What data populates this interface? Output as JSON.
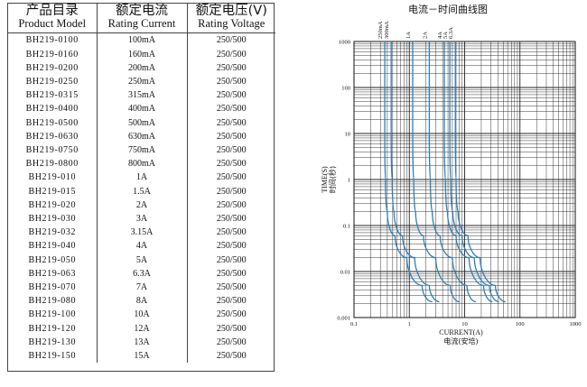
{
  "table": {
    "headers": [
      {
        "cn": "产品目录",
        "en": "Product Model"
      },
      {
        "cn": "额定电流",
        "en": "Rating Current"
      },
      {
        "cn": "额定电压(V)",
        "en": "Rating Voltage"
      }
    ],
    "rows": [
      [
        "BH219-0100",
        "100mA",
        "250/500"
      ],
      [
        "BH219-0160",
        "160mA",
        "250/500"
      ],
      [
        "BH219-0200",
        "200mA",
        "250/500"
      ],
      [
        "BH219-0250",
        "250mA",
        "250/500"
      ],
      [
        "BH219-0315",
        "315mA",
        "250/500"
      ],
      [
        "BH219-0400",
        "400mA",
        "250/500"
      ],
      [
        "BH219-0500",
        "500mA",
        "250/500"
      ],
      [
        "BH219-0630",
        "630mA",
        "250/500"
      ],
      [
        "BH219-0750",
        "750mA",
        "250/500"
      ],
      [
        "BH219-0800",
        "800mA",
        "250/500"
      ],
      [
        "BH219-010",
        "1A",
        "250/500"
      ],
      [
        "BH219-015",
        "1.5A",
        "250/500"
      ],
      [
        "BH219-020",
        "2A",
        "250/500"
      ],
      [
        "BH219-030",
        "3A",
        "250/500"
      ],
      [
        "BH219-032",
        "3.15A",
        "250/500"
      ],
      [
        "BH219-040",
        "4A",
        "250/500"
      ],
      [
        "BH219-050",
        "5A",
        "250/500"
      ],
      [
        "BH219-063",
        "6.3A",
        "250/500"
      ],
      [
        "BH219-070",
        "7A",
        "250/500"
      ],
      [
        "BH219-080",
        "8A",
        "250/500"
      ],
      [
        "BH219-100",
        "10A",
        "250/500"
      ],
      [
        "BH219-120",
        "12A",
        "250/500"
      ],
      [
        "BH219-130",
        "13A",
        "250/500"
      ],
      [
        "BH219-150",
        "15A",
        "250/500"
      ]
    ]
  },
  "chart_data": {
    "type": "line",
    "title": "电流－时间曲线图",
    "xlabel": "CURRENT(A)",
    "xlabel_cn": "电流(安培)",
    "ylabel": "TIME(S)",
    "ylabel_cn": "时间(秒)",
    "x_scale": "log",
    "y_scale": "log",
    "xlim": [
      0.1,
      1000
    ],
    "ylim": [
      0.001,
      1000
    ],
    "x_ticks": [
      "0.1",
      "1",
      "10",
      "100",
      "1000"
    ],
    "y_ticks": [
      "0.001",
      "0.01",
      "0.1",
      "1",
      "10",
      "100",
      "1000"
    ],
    "grid": true,
    "series_color": "#2f7fb5",
    "series": [
      {
        "name": "250mA",
        "points": [
          [
            0.36,
            1000
          ],
          [
            0.36,
            10
          ],
          [
            0.37,
            1
          ],
          [
            0.4,
            0.2
          ],
          [
            0.55,
            0.06
          ],
          [
            0.9,
            0.02
          ],
          [
            1.7,
            0.005
          ],
          [
            2.6,
            0.0022
          ]
        ]
      },
      {
        "name": "300mA",
        "points": [
          [
            0.47,
            1000
          ],
          [
            0.47,
            10
          ],
          [
            0.49,
            1
          ],
          [
            0.53,
            0.2
          ],
          [
            0.75,
            0.06
          ],
          [
            1.25,
            0.02
          ],
          [
            2.3,
            0.005
          ],
          [
            3.5,
            0.0022
          ]
        ]
      },
      {
        "name": "1A",
        "points": [
          [
            1.15,
            1000
          ],
          [
            1.15,
            10
          ],
          [
            1.2,
            1
          ],
          [
            1.3,
            0.2
          ],
          [
            1.8,
            0.06
          ],
          [
            3,
            0.02
          ],
          [
            5.5,
            0.005
          ],
          [
            8,
            0.0022
          ]
        ]
      },
      {
        "name": "2A",
        "points": [
          [
            2.3,
            1000
          ],
          [
            2.3,
            10
          ],
          [
            2.4,
            1
          ],
          [
            2.6,
            0.2
          ],
          [
            3.6,
            0.06
          ],
          [
            6,
            0.02
          ],
          [
            11,
            0.005
          ],
          [
            16,
            0.0022
          ]
        ]
      },
      {
        "name": "4A",
        "points": [
          [
            4.3,
            1000
          ],
          [
            4.3,
            10
          ],
          [
            4.5,
            1
          ],
          [
            4.9,
            0.2
          ],
          [
            7,
            0.06
          ],
          [
            12,
            0.02
          ],
          [
            22,
            0.005
          ],
          [
            32,
            0.0022
          ]
        ]
      },
      {
        "name": "5A",
        "points": [
          [
            5.4,
            1000
          ],
          [
            5.4,
            10
          ],
          [
            5.6,
            1
          ],
          [
            6.1,
            0.2
          ],
          [
            9,
            0.06
          ],
          [
            15,
            0.02
          ],
          [
            28,
            0.005
          ],
          [
            42,
            0.0022
          ]
        ]
      },
      {
        "name": "6.3A",
        "points": [
          [
            6.8,
            1000
          ],
          [
            6.8,
            10
          ],
          [
            7,
            1
          ],
          [
            7.6,
            0.2
          ],
          [
            11.5,
            0.06
          ],
          [
            19,
            0.02
          ],
          [
            36,
            0.005
          ],
          [
            55,
            0.0022
          ]
        ]
      }
    ]
  }
}
